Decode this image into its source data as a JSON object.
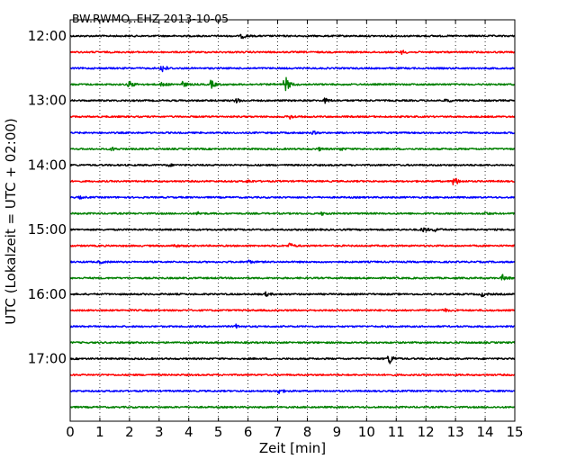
{
  "chart_data": {
    "type": "line",
    "title": "BW.RWMO..EHZ 2013-10-05",
    "xlabel": "Zeit  [min]",
    "ylabel": "UTC (Lokalzeit = UTC + 02:00)",
    "xlim": [
      0,
      15
    ],
    "x_ticks": [
      "0",
      "1",
      "2",
      "3",
      "4",
      "5",
      "6",
      "7",
      "8",
      "9",
      "10",
      "11",
      "12",
      "13",
      "14",
      "15"
    ],
    "y_ticks": [
      "12:00",
      "13:00",
      "14:00",
      "15:00",
      "16:00",
      "17:00"
    ],
    "grid": "vertical dotted",
    "trace_interval_min": 15,
    "trace_colors": [
      "#000000",
      "#ff0000",
      "#0000ff",
      "#008000"
    ],
    "traces": [
      {
        "start": "12:00",
        "events": [
          {
            "t": 5.8,
            "amp": 0.25
          }
        ]
      },
      {
        "start": "12:15",
        "events": [
          {
            "t": 11.2,
            "amp": 0.2
          }
        ]
      },
      {
        "start": "12:30",
        "events": [
          {
            "t": 3.1,
            "amp": 0.5
          }
        ]
      },
      {
        "start": "12:45",
        "events": [
          {
            "t": 2.0,
            "amp": 0.4
          },
          {
            "t": 3.1,
            "amp": 0.25
          },
          {
            "t": 3.8,
            "amp": 0.3
          },
          {
            "t": 4.75,
            "amp": 0.45
          },
          {
            "t": 7.25,
            "amp": 1.0
          }
        ]
      },
      {
        "start": "13:00",
        "events": [
          {
            "t": 5.6,
            "amp": 0.25
          },
          {
            "t": 8.6,
            "amp": 0.25
          },
          {
            "t": 12.7,
            "amp": 0.2
          }
        ]
      },
      {
        "start": "13:15",
        "events": [
          {
            "t": 7.4,
            "amp": 0.25
          }
        ]
      },
      {
        "start": "13:30",
        "events": [
          {
            "t": 8.2,
            "amp": 0.15
          }
        ]
      },
      {
        "start": "13:45",
        "events": [
          {
            "t": 1.4,
            "amp": 0.2
          },
          {
            "t": 8.4,
            "amp": 0.15
          },
          {
            "t": 9.1,
            "amp": 0.15
          }
        ]
      },
      {
        "start": "14:00",
        "events": [
          {
            "t": 3.3,
            "amp": 0.15
          }
        ]
      },
      {
        "start": "14:15",
        "events": [
          {
            "t": 6.0,
            "amp": 0.15
          },
          {
            "t": 12.95,
            "amp": 0.55
          }
        ]
      },
      {
        "start": "14:30",
        "events": [
          {
            "t": 0.3,
            "amp": 0.12
          }
        ]
      },
      {
        "start": "14:45",
        "events": [
          {
            "t": 4.3,
            "amp": 0.15
          },
          {
            "t": 8.5,
            "amp": 0.15
          },
          {
            "t": 14.0,
            "amp": 0.15
          }
        ]
      },
      {
        "start": "15:00",
        "events": [
          {
            "t": 11.9,
            "amp": 0.3
          },
          {
            "t": 12.3,
            "amp": 0.2
          }
        ]
      },
      {
        "start": "15:15",
        "events": [
          {
            "t": 3.5,
            "amp": 0.2
          },
          {
            "t": 7.4,
            "amp": 0.3
          }
        ]
      },
      {
        "start": "15:30",
        "events": [
          {
            "t": 1.0,
            "amp": 0.15
          },
          {
            "t": 6.0,
            "amp": 0.2
          }
        ]
      },
      {
        "start": "15:45",
        "events": [
          {
            "t": 14.6,
            "amp": 0.35
          }
        ]
      },
      {
        "start": "16:00",
        "events": [
          {
            "t": 6.6,
            "amp": 0.2
          },
          {
            "t": 13.9,
            "amp": 0.25
          }
        ]
      },
      {
        "start": "16:15",
        "events": [
          {
            "t": 12.6,
            "amp": 0.2
          }
        ]
      },
      {
        "start": "16:30",
        "events": [
          {
            "t": 5.6,
            "amp": 0.2
          }
        ]
      },
      {
        "start": "16:45",
        "events": []
      },
      {
        "start": "17:00",
        "events": [
          {
            "t": 10.75,
            "amp": 0.7
          }
        ]
      },
      {
        "start": "17:15",
        "events": []
      },
      {
        "start": "17:30",
        "events": [
          {
            "t": 7.0,
            "amp": 0.35
          }
        ]
      },
      {
        "start": "17:45",
        "events": []
      }
    ]
  }
}
